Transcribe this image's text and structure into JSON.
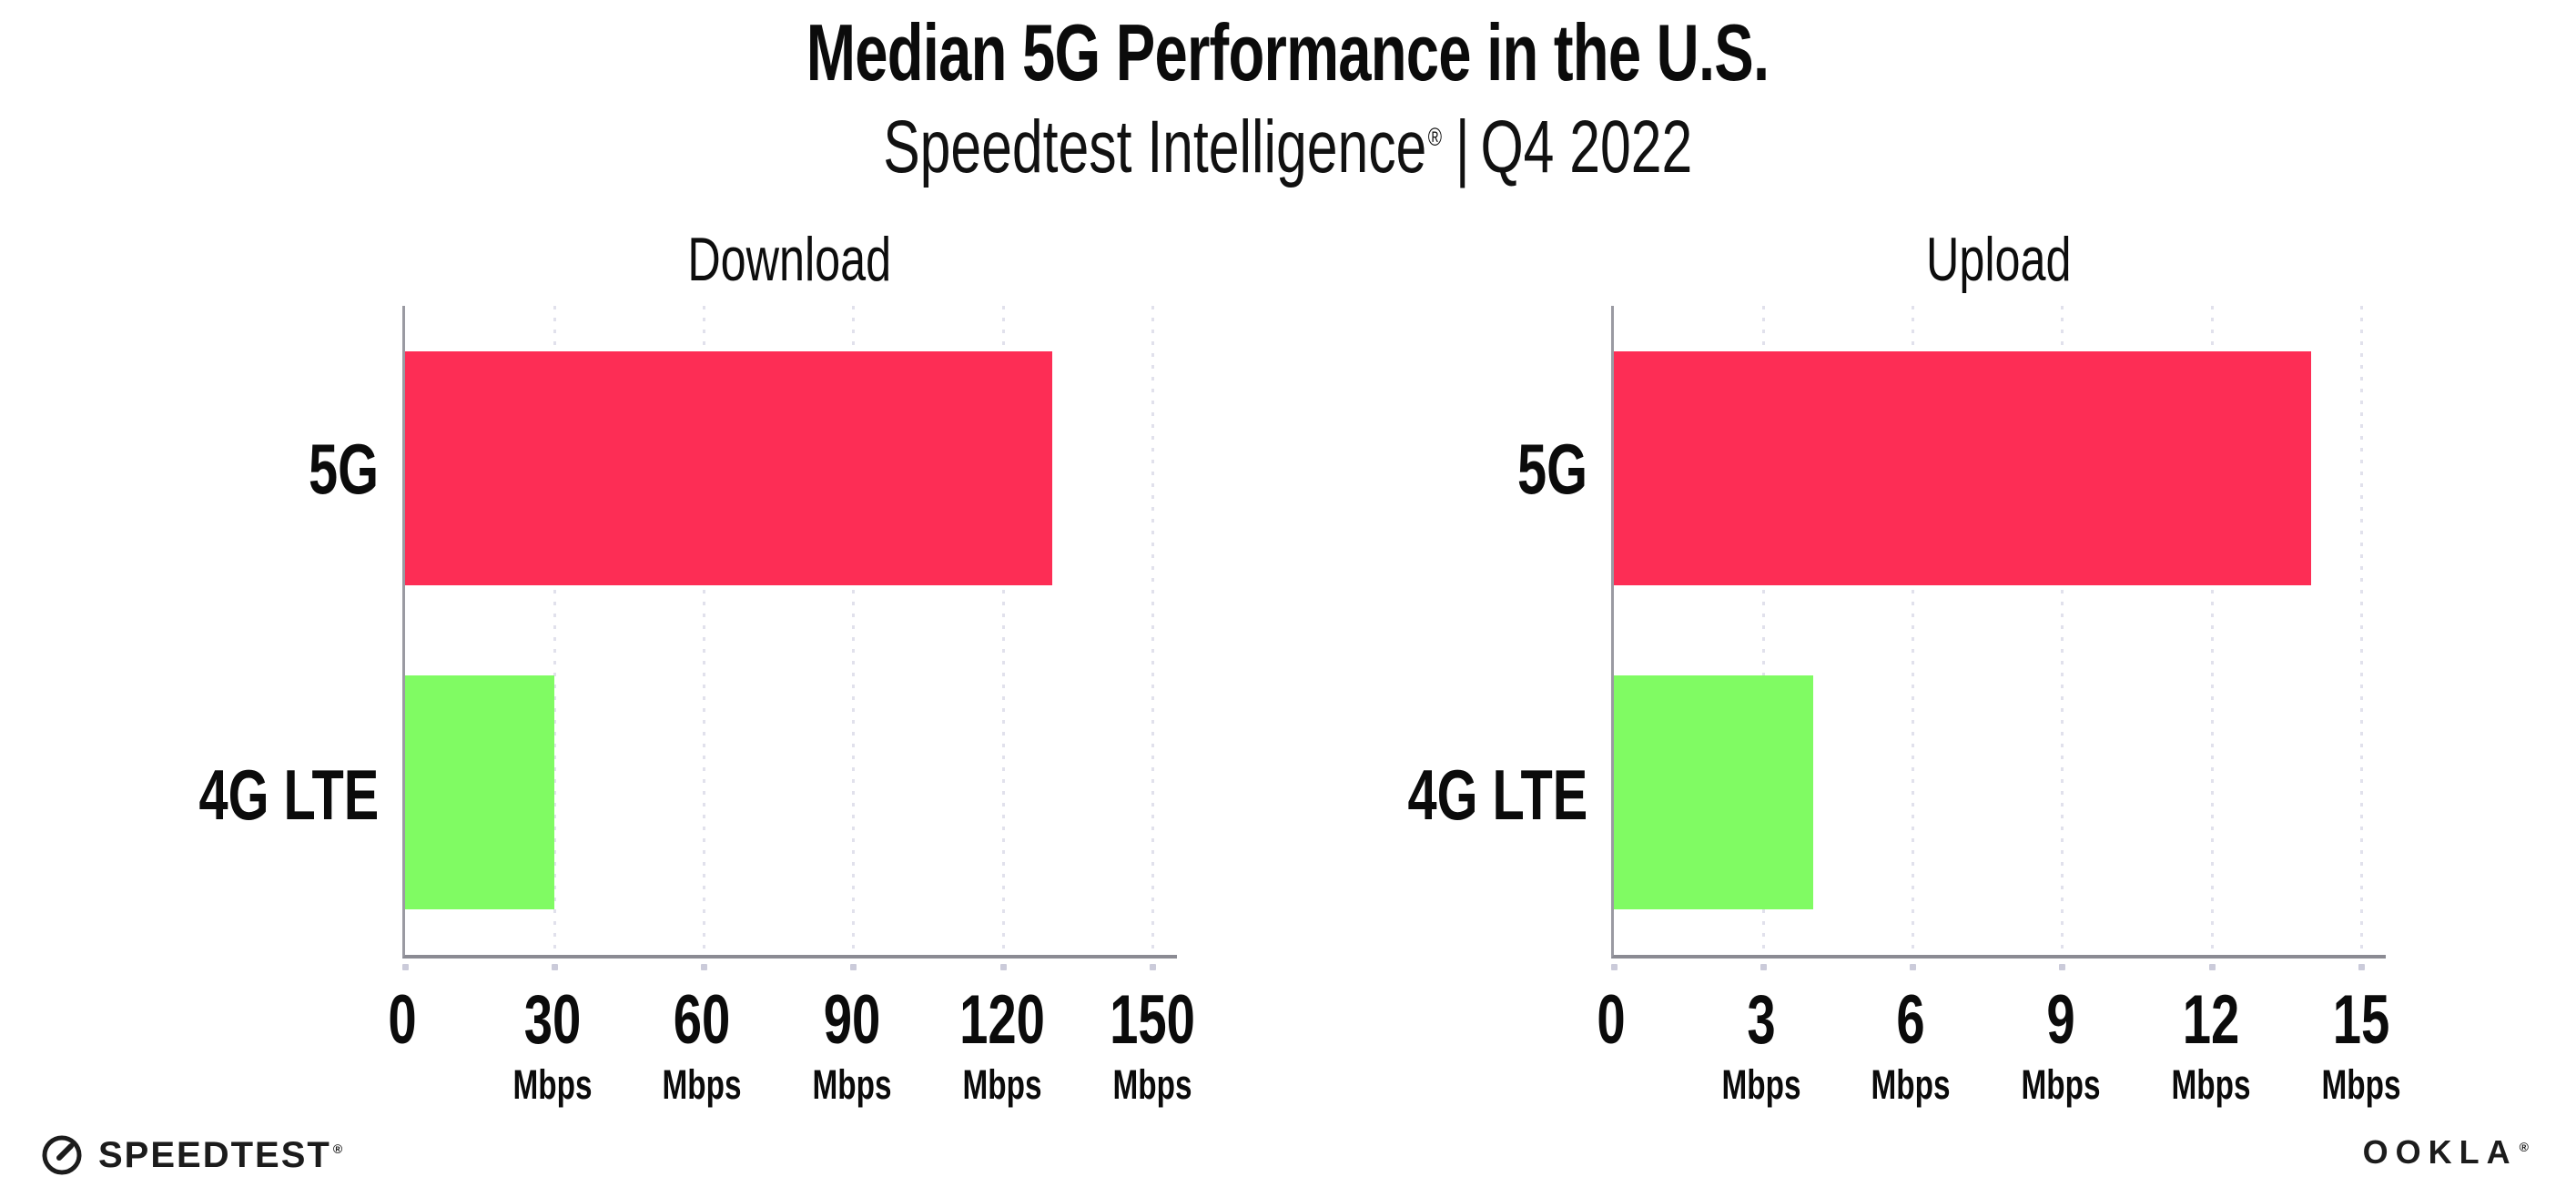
{
  "header": {
    "title": "Median 5G Performance in the U.S.",
    "subtitle_brand": "Speedtest Intelligence",
    "subtitle_reg": "®",
    "subtitle_sep": "|",
    "subtitle_period": "Q4 2022"
  },
  "colors": {
    "bar_5g": "#fd2d55",
    "bar_4g_lte": "#80fb63",
    "axis_line": "#8b8b93",
    "gridline": "#e1e1ec",
    "tick_mark": "#cbcbda",
    "text": "#0b0b0b"
  },
  "chart_data": [
    {
      "type": "bar",
      "orientation": "horizontal",
      "title": "Download",
      "categories": [
        "5G",
        "4G LTE"
      ],
      "values": [
        130,
        30
      ],
      "value_unit": "Mbps",
      "xlim": [
        0,
        155
      ],
      "ticks": [
        0,
        30,
        60,
        90,
        120,
        150
      ],
      "tick_unit": "Mbps",
      "bar_colors": [
        "#fd2d55",
        "#80fb63"
      ],
      "grid": "dotted-vertical",
      "legend": "none"
    },
    {
      "type": "bar",
      "orientation": "horizontal",
      "title": "Upload",
      "categories": [
        "5G",
        "4G LTE"
      ],
      "values": [
        14,
        4
      ],
      "value_unit": "Mbps",
      "xlim": [
        0,
        15.5
      ],
      "ticks": [
        0,
        3,
        6,
        9,
        12,
        15
      ],
      "tick_unit": "Mbps",
      "bar_colors": [
        "#fd2d55",
        "#80fb63"
      ],
      "grid": "dotted-vertical",
      "legend": "none"
    }
  ],
  "footer": {
    "speedtest_word": "SPEEDTEST",
    "speedtest_reg": "®",
    "speedtest_icon": "speedtest-gauge-icon",
    "ookla_word": "OOKLA",
    "ookla_reg": "®"
  }
}
